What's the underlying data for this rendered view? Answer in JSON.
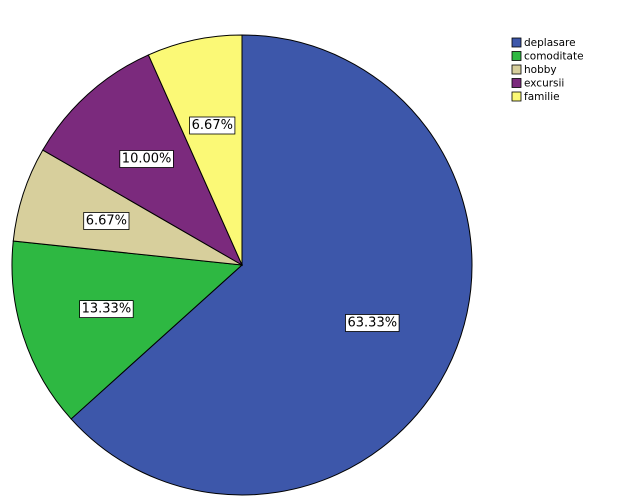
{
  "chart_data": {
    "type": "pie",
    "title": "",
    "legend_position": "top-right",
    "start_angle_deg": 0,
    "direction": "clockwise",
    "slices": [
      {
        "label": "deplasare",
        "value": 63.33,
        "display": "63.33%",
        "color": "#3d57aa"
      },
      {
        "label": "comoditate",
        "value": 13.33,
        "display": "13.33%",
        "color": "#2eb842"
      },
      {
        "label": "hobby",
        "value": 6.67,
        "display": "6.67%",
        "color": "#d7cf9c"
      },
      {
        "label": "excursii",
        "value": 10.0,
        "display": "10.00%",
        "color": "#7b2a7d"
      },
      {
        "label": "familie",
        "value": 6.67,
        "display": "6.67%",
        "color": "#fbf976"
      }
    ]
  }
}
